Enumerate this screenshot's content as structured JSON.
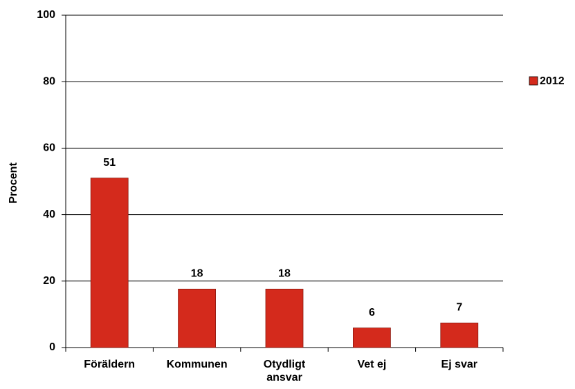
{
  "chart_data": {
    "type": "bar",
    "categories": [
      "Föräldern",
      "Kommunen",
      "Otydligt ansvar",
      "Vet ej",
      "Ej svar"
    ],
    "series": [
      {
        "name": "2012",
        "color": "#d42a1c",
        "values": [
          51,
          17.6,
          17.6,
          5.9,
          7.4
        ],
        "value_labels": [
          "51",
          "18",
          "18",
          "6",
          "7"
        ]
      }
    ],
    "y_label": "Procent",
    "ylim": [
      0,
      100
    ],
    "yticks": [
      0,
      20,
      40,
      60,
      80,
      100
    ],
    "grid": true,
    "legend": "right"
  }
}
